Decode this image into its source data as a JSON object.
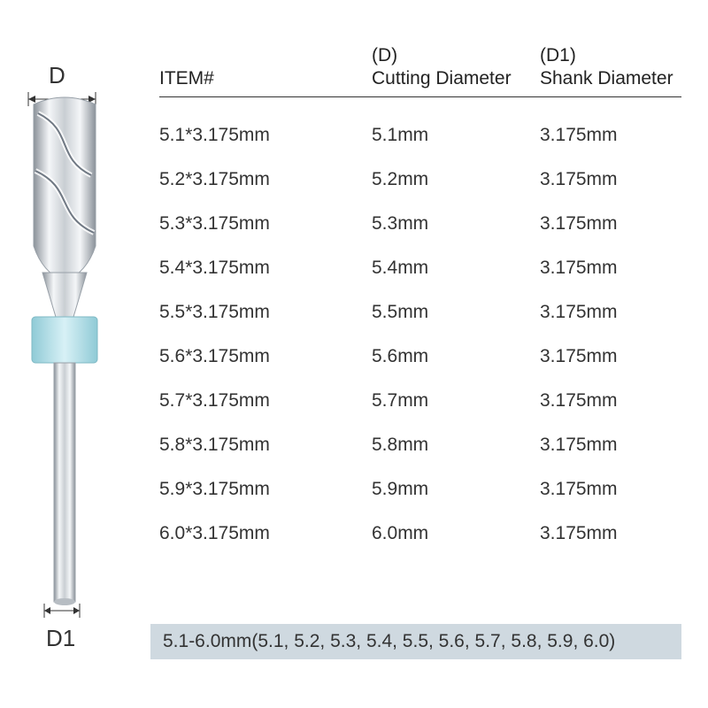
{
  "labels": {
    "d_top": "D",
    "d1_bot": "D1"
  },
  "headers": {
    "item": "ITEM#",
    "d_sup": "(D)",
    "d_label": "Cutting Diameter",
    "d1_sup": "(D1)",
    "d1_label": "Shank Diameter"
  },
  "rows": [
    {
      "item": "5.1*3.175mm",
      "d": "5.1mm",
      "d1": "3.175mm"
    },
    {
      "item": "5.2*3.175mm",
      "d": "5.2mm",
      "d1": "3.175mm"
    },
    {
      "item": "5.3*3.175mm",
      "d": "5.3mm",
      "d1": "3.175mm"
    },
    {
      "item": "5.4*3.175mm",
      "d": "5.4mm",
      "d1": "3.175mm"
    },
    {
      "item": "5.5*3.175mm",
      "d": "5.5mm",
      "d1": "3.175mm"
    },
    {
      "item": "5.6*3.175mm",
      "d": "5.6mm",
      "d1": "3.175mm"
    },
    {
      "item": "5.7*3.175mm",
      "d": "5.7mm",
      "d1": "3.175mm"
    },
    {
      "item": "5.8*3.175mm",
      "d": "5.8mm",
      "d1": "3.175mm"
    },
    {
      "item": "5.9*3.175mm",
      "d": "5.9mm",
      "d1": "3.175mm"
    },
    {
      "item": "6.0*3.175mm",
      "d": "6.0mm",
      "d1": "3.175mm"
    }
  ],
  "footer": "5.1-6.0mm(5.1, 5.2, 5.3, 5.4, 5.5, 5.6, 5.7, 5.8, 5.9, 6.0)",
  "colors": {
    "footer_bg": "#cfd9e0",
    "text": "#333333",
    "rule": "#333333",
    "collar": "#bde4ed",
    "metal_light": "#f4f6f8",
    "metal_mid": "#c9ced3",
    "metal_dark": "#8a9199"
  }
}
